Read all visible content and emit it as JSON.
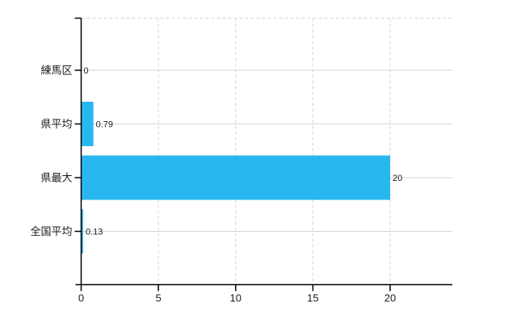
{
  "chart_data": {
    "type": "bar",
    "orientation": "horizontal",
    "title": "",
    "xlabel": "",
    "ylabel": "",
    "categories": [
      "練馬区",
      "県平均",
      "県最大",
      "全国平均"
    ],
    "values": [
      0,
      0.79,
      20,
      0.13
    ],
    "value_labels": [
      "0",
      "0.79",
      "20",
      "0.13"
    ],
    "x_ticks": [
      0,
      5,
      10,
      15,
      20
    ],
    "x_tick_labels": [
      "0",
      "5",
      "10",
      "15",
      "20"
    ],
    "xlim": [
      0,
      24
    ],
    "grid": true,
    "legend": false,
    "colors": {
      "bar": "#29b7f0",
      "axis": "#000000",
      "grid": "#d6d6d6",
      "text": "#1a1a1a",
      "background": "#ffffff"
    }
  }
}
